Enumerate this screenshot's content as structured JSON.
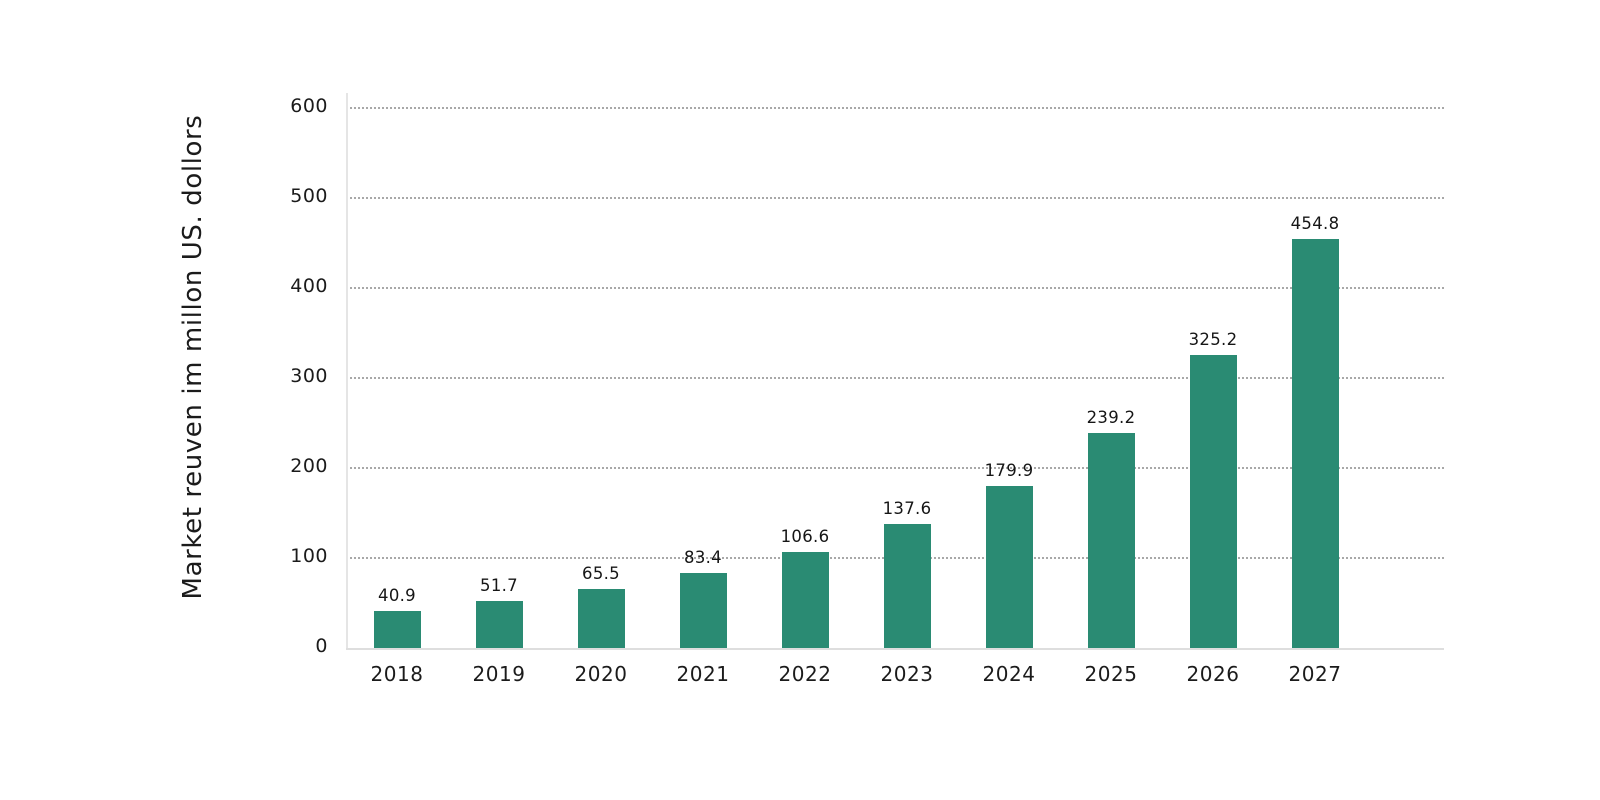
{
  "chart_data": {
    "type": "bar",
    "title": "",
    "ylabel": "Market reuven im millon US. dollors",
    "xlabel": "",
    "categories": [
      "2018",
      "2019",
      "2020",
      "2021",
      "2022",
      "2023",
      "2024",
      "2025",
      "2026",
      "2027"
    ],
    "values": [
      40.9,
      51.7,
      65.5,
      83.4,
      106.6,
      137.6,
      179.9,
      239.2,
      325.2,
      454.8
    ],
    "value_labels": [
      "40.9",
      "51.7",
      "65.5",
      "83.4",
      "106.6",
      "137.6",
      "179.9",
      "239.2",
      "325.2",
      "454.8"
    ],
    "yticks": [
      0,
      100,
      200,
      300,
      400,
      500,
      600
    ],
    "ylim": [
      0,
      600
    ],
    "grid": "horizontal-dotted",
    "legend": "none",
    "bar_color": "#2a8b73"
  },
  "colors": {
    "background": "#ffffff",
    "bar": "#2a8b73",
    "gridline": "#a8a8a8",
    "axis_line": "#e0e0e0",
    "text": "#1b1b1b"
  }
}
